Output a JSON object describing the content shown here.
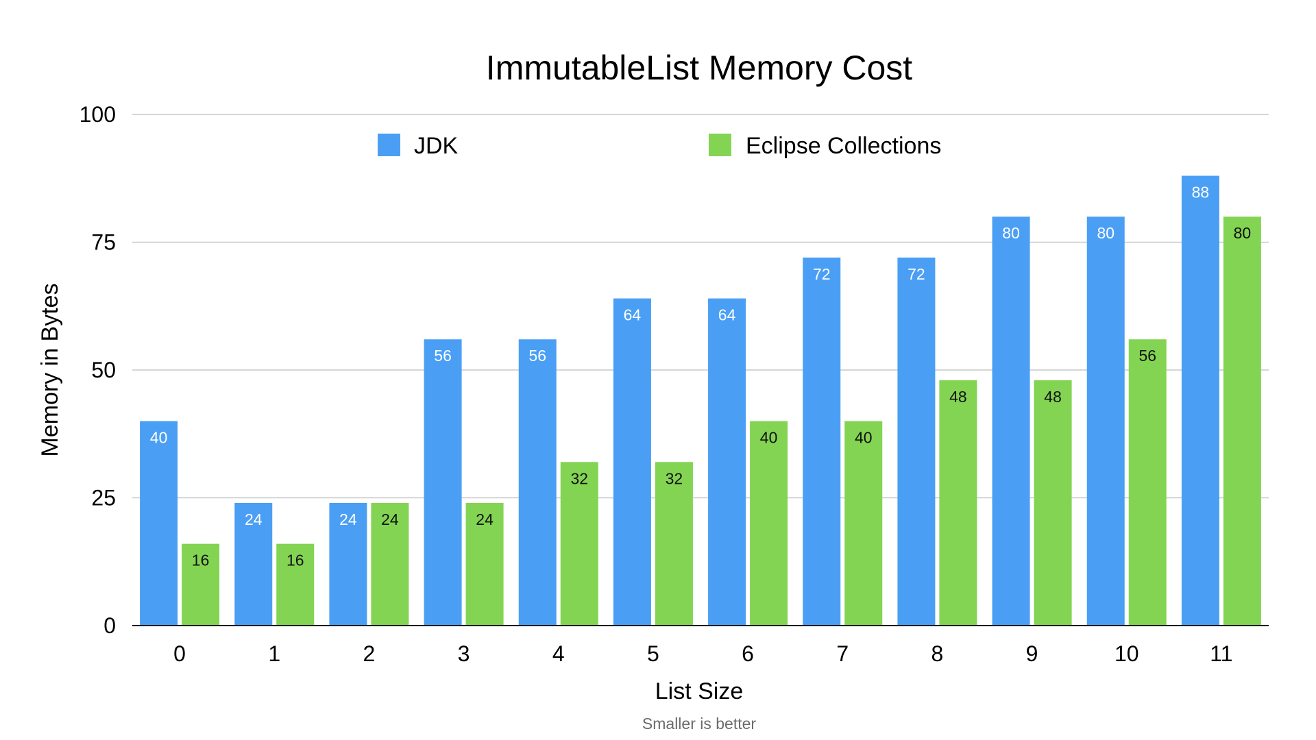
{
  "chart_data": {
    "type": "bar",
    "title": "ImmutableList Memory Cost",
    "xlabel": "List Size",
    "ylabel": "Memory in Bytes",
    "footnote": "Smaller is better",
    "categories": [
      "0",
      "1",
      "2",
      "3",
      "4",
      "5",
      "6",
      "7",
      "8",
      "9",
      "10",
      "11"
    ],
    "series": [
      {
        "name": "JDK",
        "color": "#4a9ff5",
        "label_color": "#ffffff",
        "values": [
          40,
          24,
          24,
          56,
          56,
          64,
          64,
          72,
          72,
          80,
          80,
          88
        ]
      },
      {
        "name": "Eclipse Collections",
        "color": "#83d452",
        "label_color": "#111111",
        "values": [
          16,
          16,
          24,
          24,
          32,
          32,
          40,
          40,
          48,
          48,
          56,
          80
        ]
      }
    ],
    "ylim": [
      0,
      100
    ],
    "yticks": [
      0,
      25,
      50,
      75,
      100
    ],
    "grid": true,
    "legend_position": "top",
    "data_labels": true
  }
}
